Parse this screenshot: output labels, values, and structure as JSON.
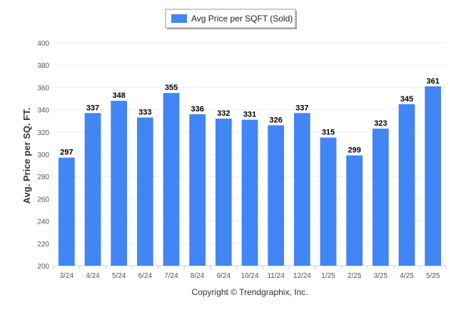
{
  "chart_data": {
    "type": "bar",
    "categories": [
      "3/24",
      "4/24",
      "5/24",
      "6/24",
      "7/24",
      "8/24",
      "9/24",
      "10/24",
      "11/24",
      "12/24",
      "1/25",
      "2/25",
      "3/25",
      "4/25",
      "5/25"
    ],
    "series": [
      {
        "name": "Avg Price per SQFT (Sold)",
        "values": [
          297,
          337,
          348,
          333,
          355,
          336,
          332,
          331,
          326,
          337,
          315,
          299,
          323,
          345,
          361
        ]
      }
    ],
    "ylabel": "Avg. Price per SQ. FT.",
    "xlabel": "",
    "ylim": [
      200,
      400
    ],
    "yticks": [
      200,
      220,
      240,
      260,
      280,
      300,
      320,
      340,
      360,
      380,
      400
    ],
    "grid": true,
    "legend": "top-center",
    "bar_color": "#4285f4",
    "data_labels": true
  },
  "footer": {
    "copyright": "Copyright © Trendgraphix, Inc."
  }
}
